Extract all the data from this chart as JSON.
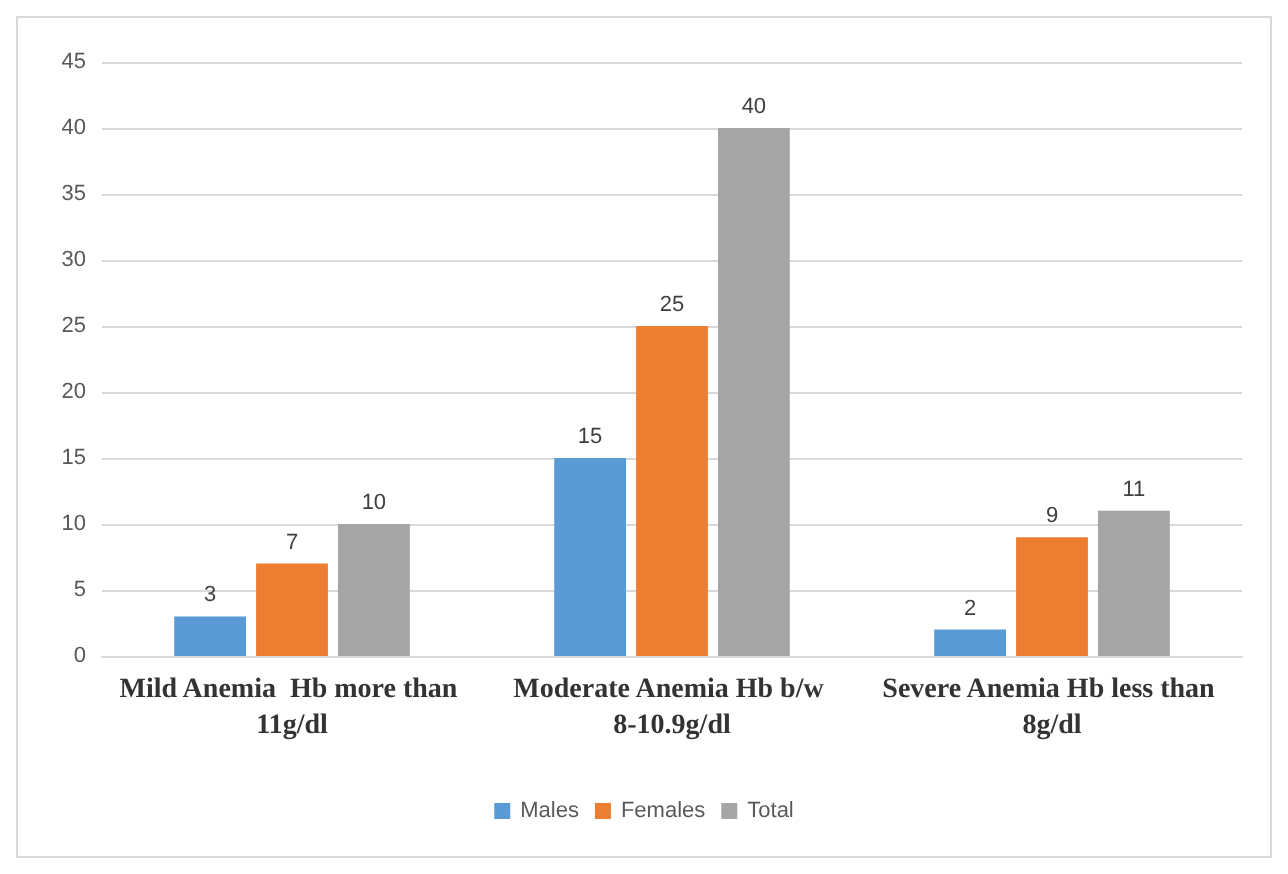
{
  "chart_data": {
    "type": "bar",
    "categories": [
      "Mild Anemia  Hb more than 11g/dl",
      "Moderate Anemia Hb b/w 8-10.9g/dl",
      "Severe Anemia Hb less than 8g/dl"
    ],
    "series": [
      {
        "name": "Males",
        "color": "#5b9bd5",
        "values": [
          3,
          15,
          2
        ]
      },
      {
        "name": "Females",
        "color": "#ed7d31",
        "values": [
          7,
          25,
          9
        ]
      },
      {
        "name": "Total",
        "color": "#a5a5a5",
        "values": [
          10,
          40,
          11
        ]
      }
    ],
    "ylim": [
      0,
      45
    ],
    "yticks": [
      0,
      5,
      10,
      15,
      20,
      25,
      30,
      35,
      40,
      45
    ],
    "grid": "y",
    "legend": "bottom",
    "data_labels": true
  }
}
